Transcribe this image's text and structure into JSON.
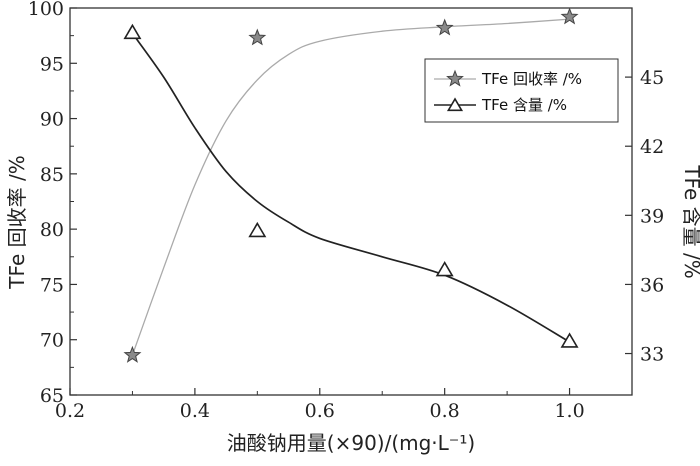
{
  "chart_data": {
    "type": "line",
    "xlabel": "油酸钠用量(×90)/(mg·L⁻¹)",
    "ylabel_left": "TFe 回收率 /%",
    "ylabel_right": "TFe 含量 /%",
    "xlim": [
      0.2,
      1.1
    ],
    "ylim_left": [
      65,
      100
    ],
    "ylim_right": [
      31.2,
      48
    ],
    "x_ticks": [
      0.2,
      0.4,
      0.6,
      0.8,
      1.0
    ],
    "x_tick_labels": [
      "0.2",
      "0.4",
      "0.6",
      "0.8",
      "1.0"
    ],
    "y_left_ticks": [
      65,
      70,
      75,
      80,
      85,
      90,
      95,
      100
    ],
    "y_left_tick_labels": [
      "65",
      "70",
      "75",
      "80",
      "85",
      "90",
      "95",
      "100"
    ],
    "y_right_ticks": [
      33,
      36,
      39,
      42,
      45
    ],
    "y_right_tick_labels": [
      "33",
      "36",
      "39",
      "42",
      "45"
    ],
    "legend_position": "top-right",
    "series": [
      {
        "name": "TFe 回收率 /%",
        "axis": "left",
        "marker": "star",
        "x": [
          0.3,
          0.5,
          0.8,
          1.0
        ],
        "y": [
          68.6,
          97.3,
          98.2,
          99.2
        ],
        "fit": [
          [
            0.3,
            68.6
          ],
          [
            0.35,
            76.5
          ],
          [
            0.4,
            84.0
          ],
          [
            0.45,
            89.8
          ],
          [
            0.5,
            93.5
          ],
          [
            0.55,
            95.8
          ],
          [
            0.6,
            97.0
          ],
          [
            0.7,
            97.9
          ],
          [
            0.8,
            98.3
          ],
          [
            0.9,
            98.6
          ],
          [
            1.0,
            99.0
          ]
        ]
      },
      {
        "name": "TFe 含量 /%",
        "axis": "right",
        "marker": "triangle",
        "x": [
          0.3,
          0.5,
          0.8,
          1.0
        ],
        "y": [
          46.9,
          38.3,
          36.6,
          33.5
        ],
        "fit": [
          [
            0.3,
            46.9
          ],
          [
            0.35,
            45.0
          ],
          [
            0.4,
            42.8
          ],
          [
            0.45,
            40.9
          ],
          [
            0.5,
            39.6
          ],
          [
            0.55,
            38.7
          ],
          [
            0.6,
            38.0
          ],
          [
            0.7,
            37.2
          ],
          [
            0.8,
            36.4
          ],
          [
            0.9,
            35.1
          ],
          [
            1.0,
            33.5
          ]
        ]
      }
    ]
  }
}
